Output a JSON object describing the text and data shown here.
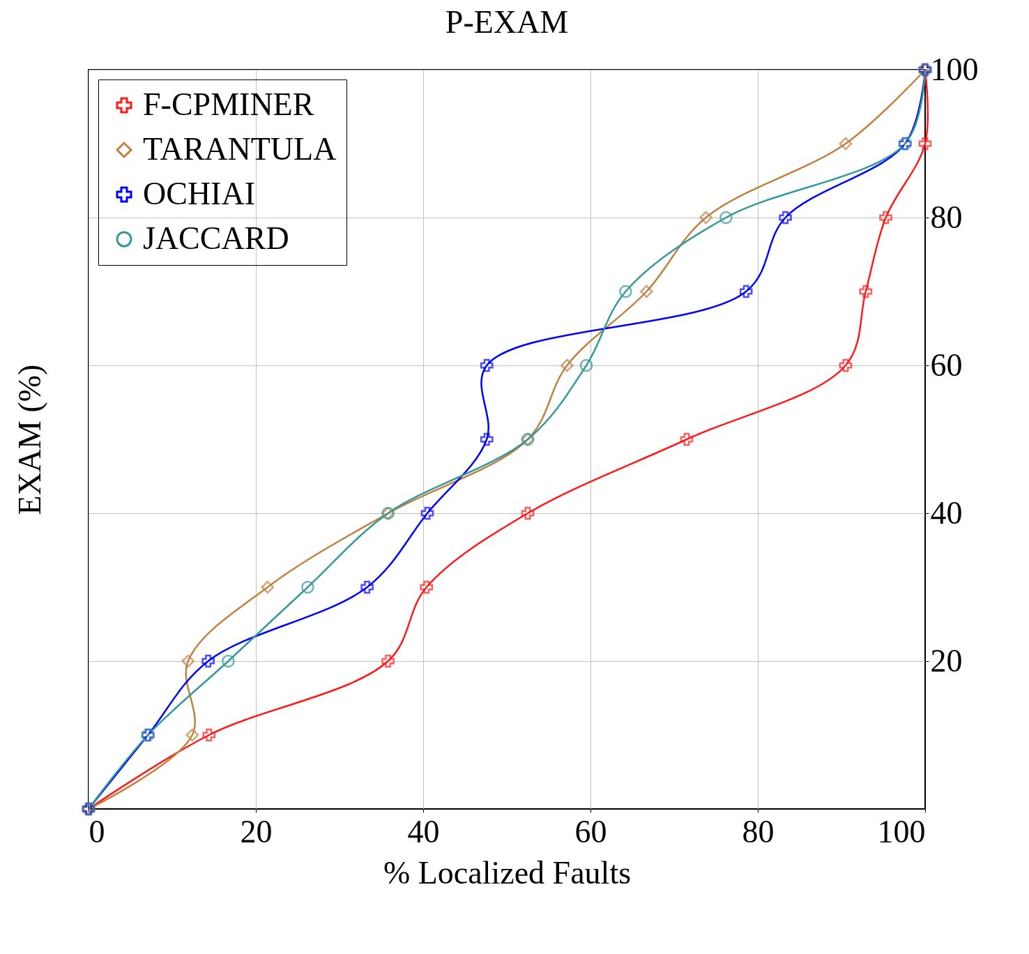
{
  "chart_data": {
    "type": "line",
    "title": "P-EXAM",
    "xlabel": "% Localized Faults",
    "ylabel": "EXAM (%)",
    "xlim": [
      0,
      100
    ],
    "xticks": [
      0,
      20,
      40,
      60,
      80,
      100
    ],
    "ylim": [
      0,
      100
    ],
    "yticks": [
      20,
      40,
      60,
      80,
      100
    ],
    "grid": true,
    "legend": "top left",
    "series": [
      {
        "name": "F-CPMINER",
        "color": "#ff1a1a",
        "marker": "cross",
        "x": [
          0,
          14.4,
          35.8,
          40.4,
          52.5,
          71.5,
          90.5,
          92.9,
          95.3,
          100,
          100
        ],
        "values": [
          0,
          10,
          20,
          30,
          40,
          50,
          60,
          70,
          80,
          90,
          100
        ]
      },
      {
        "name": "TARANTULA",
        "color": "#bf8040",
        "marker": "diamond",
        "x": [
          0,
          12.4,
          11.9,
          21.4,
          35.8,
          52.5,
          57.2,
          66.7,
          73.8,
          90.5,
          100
        ],
        "values": [
          0,
          10,
          20,
          30,
          40,
          50,
          60,
          70,
          80,
          90,
          100
        ]
      },
      {
        "name": "OCHIAI",
        "color": "#0000ff",
        "marker": "cross",
        "x": [
          0,
          7.1,
          14.3,
          33.3,
          40.5,
          47.6,
          47.6,
          78.6,
          83.3,
          97.6,
          100
        ],
        "values": [
          0,
          10,
          20,
          30,
          40,
          50,
          60,
          70,
          80,
          90,
          100
        ]
      },
      {
        "name": "JACCARD",
        "color": "#339999",
        "marker": "circle",
        "x": [
          0,
          7.1,
          16.7,
          26.2,
          35.8,
          52.5,
          59.5,
          64.2,
          76.2,
          97.6,
          100
        ],
        "values": [
          0,
          10,
          20,
          30,
          40,
          50,
          60,
          70,
          80,
          90,
          100
        ]
      }
    ]
  }
}
